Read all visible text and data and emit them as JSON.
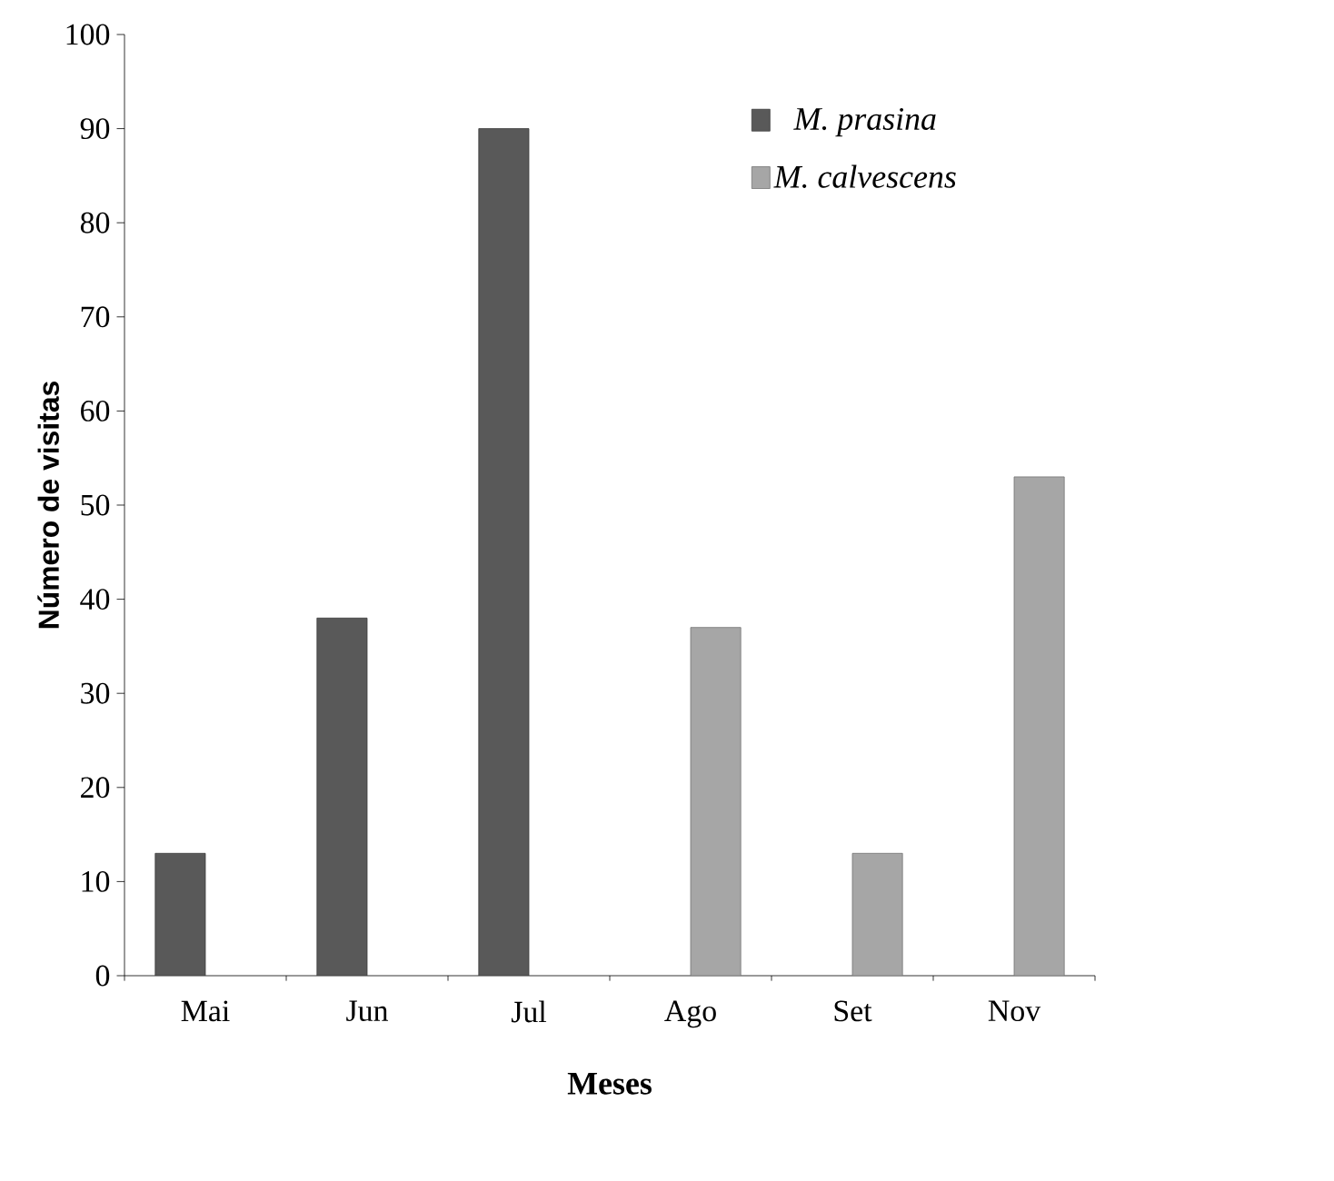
{
  "chart_data": {
    "type": "bar",
    "xlabel": "Meses",
    "ylabel": "Número de visitas",
    "categories": [
      "Mai",
      "Jun",
      "Jul",
      "Ago",
      "Set",
      "Nov"
    ],
    "series": [
      {
        "name": "M. prasina",
        "color": "#595959",
        "values": [
          13,
          38,
          90,
          null,
          null,
          null
        ]
      },
      {
        "name": "M. calvescens",
        "color": "#a6a6a6",
        "values": [
          null,
          null,
          null,
          37,
          13,
          53
        ]
      }
    ],
    "ylim": [
      0,
      100
    ],
    "yticks": [
      0,
      10,
      20,
      30,
      40,
      50,
      60,
      70,
      80,
      90,
      100
    ],
    "grid": false,
    "legend": "top right"
  }
}
